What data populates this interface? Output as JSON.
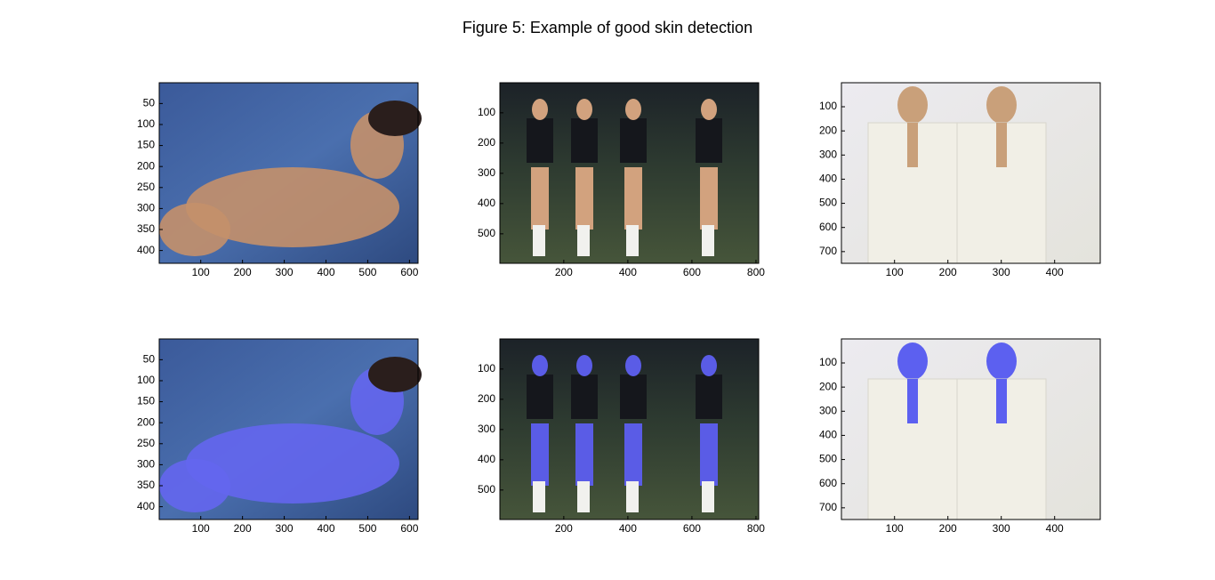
{
  "title": "Figure 5: Example of good skin detection",
  "axes": [
    {
      "type": "image",
      "xlim": [
        0.5,
        620.5
      ],
      "ylim": [
        0.5,
        430.5
      ],
      "xticks": [
        100,
        200,
        300,
        400,
        500,
        600
      ],
      "yticks": [
        50,
        100,
        150,
        200,
        250,
        300,
        350,
        400
      ]
    },
    {
      "type": "image",
      "xlim": [
        0.5,
        808.5
      ],
      "ylim": [
        0.5,
        597.5
      ],
      "xticks": [
        200,
        400,
        600,
        800
      ],
      "yticks": [
        100,
        200,
        300,
        400,
        500
      ]
    },
    {
      "type": "image",
      "xlim": [
        0.5,
        485.5
      ],
      "ylim": [
        0.5,
        748.5
      ],
      "xticks": [
        100,
        200,
        300,
        400
      ],
      "yticks": [
        100,
        200,
        300,
        400,
        500,
        600,
        700
      ]
    },
    {
      "type": "image",
      "xlim": [
        0.5,
        620.5
      ],
      "ylim": [
        0.5,
        430.5
      ],
      "xticks": [
        100,
        200,
        300,
        400,
        500,
        600
      ],
      "yticks": [
        50,
        100,
        150,
        200,
        250,
        300,
        350,
        400
      ]
    },
    {
      "type": "image",
      "xlim": [
        0.5,
        808.5
      ],
      "ylim": [
        0.5,
        597.5
      ],
      "xticks": [
        200,
        400,
        600,
        800
      ],
      "yticks": [
        100,
        200,
        300,
        400,
        500
      ]
    },
    {
      "type": "image",
      "xlim": [
        0.5,
        485.5
      ],
      "ylim": [
        0.5,
        748.5
      ],
      "xticks": [
        100,
        200,
        300,
        400
      ],
      "yticks": [
        100,
        200,
        300,
        400,
        500,
        600,
        700
      ]
    }
  ]
}
